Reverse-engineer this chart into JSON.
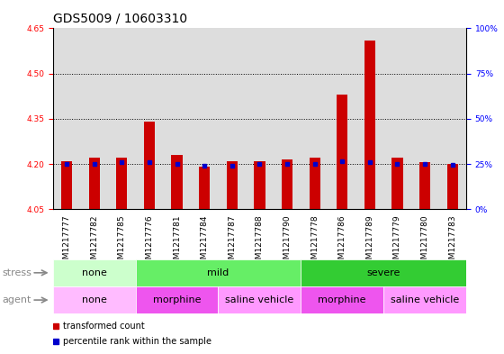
{
  "title": "GDS5009 / 10603310",
  "samples": [
    "GSM1217777",
    "GSM1217782",
    "GSM1217785",
    "GSM1217776",
    "GSM1217781",
    "GSM1217784",
    "GSM1217787",
    "GSM1217788",
    "GSM1217790",
    "GSM1217778",
    "GSM1217786",
    "GSM1217789",
    "GSM1217779",
    "GSM1217780",
    "GSM1217783"
  ],
  "red_values": [
    4.21,
    4.22,
    4.22,
    4.34,
    4.23,
    4.19,
    4.21,
    4.21,
    4.215,
    4.22,
    4.43,
    4.61,
    4.22,
    4.205,
    4.2
  ],
  "blue_values": [
    4.2,
    4.2,
    4.205,
    4.205,
    4.2,
    4.195,
    4.195,
    4.2,
    4.2,
    4.2,
    4.21,
    4.205,
    4.2,
    4.2,
    4.198
  ],
  "base_value": 4.05,
  "ylim_left": [
    4.05,
    4.65
  ],
  "yticks_left": [
    4.05,
    4.2,
    4.35,
    4.5,
    4.65
  ],
  "yticks_right": [
    0,
    25,
    50,
    75,
    100
  ],
  "right_ylim": [
    0,
    100
  ],
  "dotted_lines": [
    4.2,
    4.35,
    4.5
  ],
  "stress_groups": [
    {
      "label": "none",
      "start": 0,
      "end": 3,
      "color": "#ccffcc"
    },
    {
      "label": "mild",
      "start": 3,
      "end": 9,
      "color": "#66ee66"
    },
    {
      "label": "severe",
      "start": 9,
      "end": 15,
      "color": "#33cc33"
    }
  ],
  "agent_groups": [
    {
      "label": "none",
      "start": 0,
      "end": 3,
      "color": "#ffbbff"
    },
    {
      "label": "morphine",
      "start": 3,
      "end": 6,
      "color": "#ee55ee"
    },
    {
      "label": "saline vehicle",
      "start": 6,
      "end": 9,
      "color": "#ff99ff"
    },
    {
      "label": "morphine",
      "start": 9,
      "end": 12,
      "color": "#ee55ee"
    },
    {
      "label": "saline vehicle",
      "start": 12,
      "end": 15,
      "color": "#ff99ff"
    }
  ],
  "bar_width": 0.4,
  "red_color": "#cc0000",
  "blue_color": "#0000cc",
  "title_fontsize": 10,
  "tick_fontsize": 6.5,
  "label_fontsize": 8,
  "row_label_fontsize": 8,
  "bg_color": "#dddddd"
}
